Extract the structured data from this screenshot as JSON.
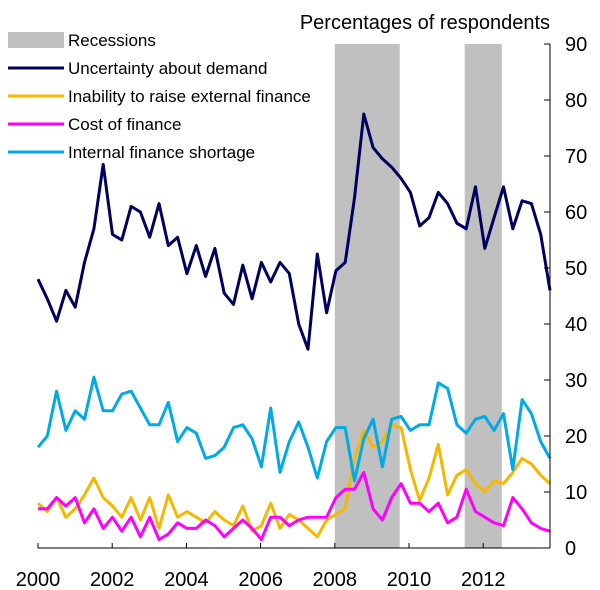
{
  "chart_data": {
    "type": "line",
    "title": "",
    "ylabel": "Percentages of respondents",
    "xlabel": "",
    "xlim": [
      2000,
      2013.8
    ],
    "ylim": [
      0,
      90
    ],
    "y_axis_side": "right",
    "x_ticks": [
      "2000",
      "2002",
      "2004",
      "2006",
      "2008",
      "2010",
      "2012"
    ],
    "y_ticks": [
      "0",
      "10",
      "20",
      "30",
      "40",
      "50",
      "60",
      "70",
      "80",
      "90"
    ],
    "legend_placement": "top-left",
    "grid": false,
    "recessions": {
      "name": "Recessions",
      "color": "#c0c0c0",
      "periods": [
        [
          2008.0,
          2009.75
        ],
        [
          2011.5,
          2012.5
        ]
      ]
    },
    "series": [
      {
        "name": "Uncertainty about demand",
        "color": "#000060",
        "values": [
          48,
          44.5,
          40.5,
          46,
          43,
          51,
          57,
          68.5,
          56,
          55,
          61,
          60,
          55.5,
          61.5,
          54,
          55.5,
          49,
          54,
          48.5,
          53.5,
          45.5,
          43.5,
          50.5,
          44.5,
          51,
          47.5,
          51,
          49,
          40,
          35.5,
          52.5,
          42,
          49.5,
          51,
          62.5,
          77.5,
          71.5,
          69.5,
          68,
          66,
          63.5,
          57.5,
          59,
          63.5,
          61.5,
          58,
          57,
          64.5,
          53.5,
          59,
          64.5,
          57,
          62,
          61.5,
          56,
          46
        ]
      },
      {
        "name": "Inability to raise external finance",
        "color": "#f5b800",
        "values": [
          8,
          6.5,
          9,
          5.5,
          7,
          9.5,
          12.5,
          9,
          7.5,
          5.5,
          9,
          5,
          9,
          3.5,
          9.5,
          5.5,
          6.5,
          5.5,
          4.5,
          6.5,
          5,
          4,
          7.5,
          3,
          4,
          8,
          3.5,
          6,
          5,
          3.5,
          2,
          5,
          6,
          7,
          16,
          21,
          18,
          19,
          22,
          21.5,
          14,
          8.5,
          12.5,
          18.5,
          9.5,
          13,
          14,
          11.5,
          10,
          12,
          11.5,
          13.5,
          16,
          15,
          13,
          11.5
        ]
      },
      {
        "name": "Cost of finance",
        "color": "#ff00ff",
        "values": [
          7,
          7,
          9,
          7.5,
          9,
          4.5,
          7,
          3.5,
          5.5,
          3,
          5.5,
          2,
          5.5,
          1.5,
          2.5,
          4.5,
          3.5,
          3.5,
          5,
          4,
          2,
          3.5,
          5,
          3.5,
          1.5,
          5.5,
          5.5,
          4,
          5,
          5.5,
          5.5,
          5.5,
          9,
          10.5,
          10.5,
          13.5,
          7,
          5,
          9,
          11.5,
          8,
          8,
          6.5,
          8,
          4.5,
          5.5,
          10.5,
          6.5,
          5.5,
          4.5,
          4,
          9,
          7,
          4.5,
          3.5,
          3
        ]
      },
      {
        "name": "Internal finance shortage",
        "color": "#00aae8",
        "values": [
          18,
          20,
          28,
          21,
          24.5,
          23,
          30.5,
          24.5,
          24.5,
          27.5,
          28,
          25,
          22,
          22,
          26,
          19,
          21.5,
          20.5,
          16,
          16.5,
          18,
          21.5,
          22,
          19.5,
          14.5,
          25,
          13.5,
          19,
          22.5,
          18,
          12.5,
          19,
          21.5,
          21.5,
          12,
          19.5,
          23,
          14.5,
          23,
          23.5,
          21,
          22,
          22,
          29.5,
          28.5,
          22,
          20.5,
          23,
          23.5,
          21,
          24,
          14,
          26.5,
          24,
          19,
          16
        ]
      }
    ]
  }
}
